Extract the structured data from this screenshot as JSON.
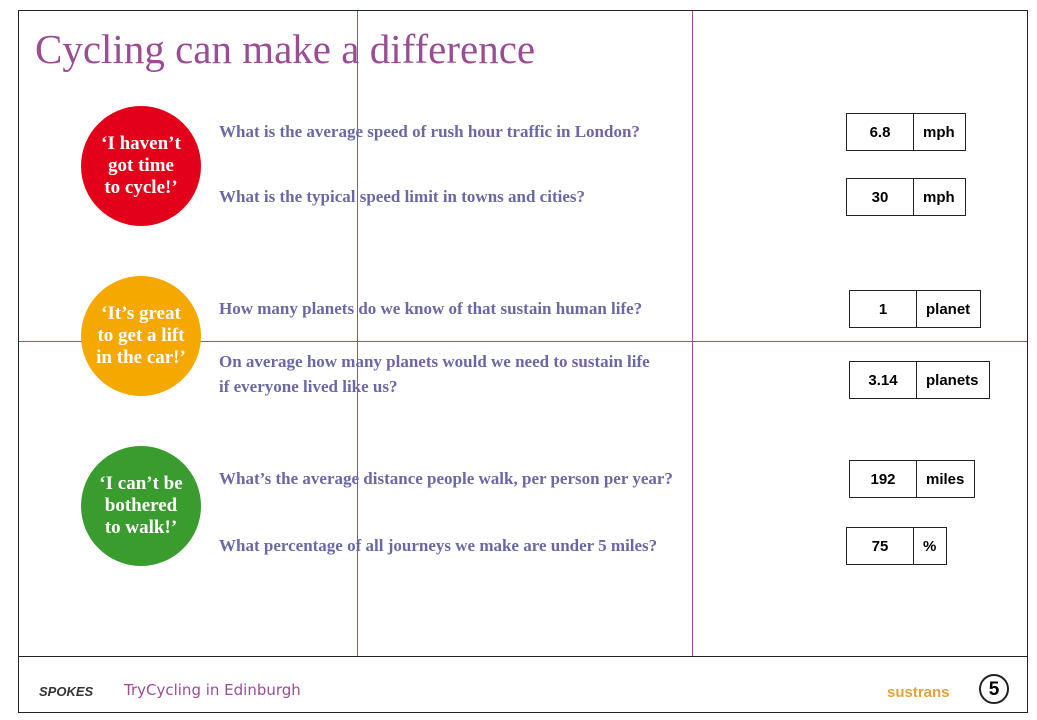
{
  "title": "Cycling can make a difference",
  "sections": [
    {
      "bubble": {
        "color": "#e2001a",
        "lines": [
          "‘I haven’t",
          "got time",
          "to cycle!’"
        ]
      },
      "questions": [
        {
          "lines": [
            "What is the average speed of rush hour traffic in London?"
          ],
          "answer": "6.8",
          "unit": "mph"
        },
        {
          "lines": [
            "What is the typical speed limit in towns and cities?"
          ],
          "answer": "30",
          "unit": "mph"
        }
      ]
    },
    {
      "bubble": {
        "color": "#f5a800",
        "lines": [
          "‘It’s great",
          "to get a lift",
          "in the car!’"
        ]
      },
      "questions": [
        {
          "lines": [
            "How many planets do we know of that sustain human life?"
          ],
          "answer": "1",
          "unit": "planet"
        },
        {
          "lines": [
            "On average how many planets would we need to sustain life",
            "if everyone lived like us?"
          ],
          "answer": "3.14",
          "unit": "planets"
        }
      ]
    },
    {
      "bubble": {
        "color": "#3a9b2e",
        "lines": [
          "‘I can’t be",
          "bothered",
          "to walk!’"
        ]
      },
      "questions": [
        {
          "lines": [
            "What’s the average distance people walk, per person per year?"
          ],
          "answer": "192",
          "unit": "miles"
        },
        {
          "lines": [
            "What percentage of all journeys we make are under 5 miles?"
          ],
          "answer": "75",
          "unit": "%"
        }
      ]
    }
  ],
  "footer": {
    "logo": "SPOKES",
    "tagline": "TryCycling in Edinburgh",
    "partner": "sustrans",
    "page": "5"
  }
}
